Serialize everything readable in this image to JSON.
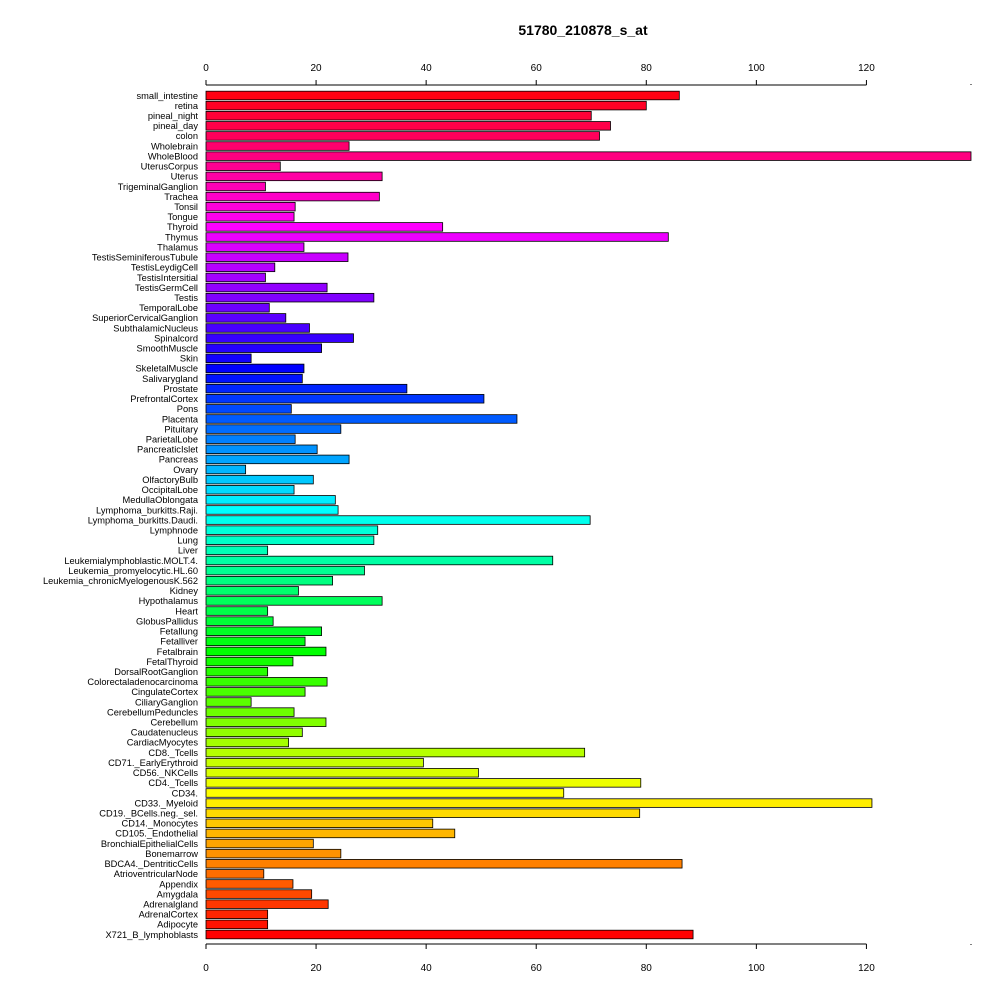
{
  "chart_data": {
    "type": "bar",
    "orientation": "horizontal",
    "title": "51780_210878_s_at",
    "xlabel": "",
    "ylabel": "",
    "xlim": [
      0,
      139
    ],
    "xticks": [
      "0",
      "20",
      "40",
      "60",
      "80",
      "100",
      "120"
    ],
    "grid": false,
    "color_scheme": "rainbow",
    "categories": [
      "small_intestine",
      "retina",
      "pineal_night",
      "pineal_day",
      "colon",
      "Wholebrain",
      "WholeBlood",
      "UterusCorpus",
      "Uterus",
      "TrigeminalGanglion",
      "Trachea",
      "Tonsil",
      "Tongue",
      "Thyroid",
      "Thymus",
      "Thalamus",
      "TestisSeminiferousTubule",
      "TestisLeydigCell",
      "TestisIntersitial",
      "TestisGermCell",
      "Testis",
      "TemporalLobe",
      "SuperiorCervicalGanglion",
      "SubthalamicNucleus",
      "Spinalcord",
      "SmoothMuscle",
      "Skin",
      "SkeletalMuscle",
      "Salivarygland",
      "Prostate",
      "PrefrontalCortex",
      "Pons",
      "Placenta",
      "Pituitary",
      "ParietalLobe",
      "PancreaticIslet",
      "Pancreas",
      "Ovary",
      "OlfactoryBulb",
      "OccipitalLobe",
      "MedullaOblongata",
      "Lymphoma_burkitts.Raji.",
      "Lymphoma_burkitts.Daudi.",
      "Lymphnode",
      "Lung",
      "Liver",
      "Leukemialymphoblastic.MOLT.4.",
      "Leukemia_promyelocytic.HL.60",
      "Leukemia_chronicMyelogenousK.562",
      "Kidney",
      "Hypothalamus",
      "Heart",
      "GlobusPallidus",
      "Fetallung",
      "Fetalliver",
      "Fetalbrain",
      "FetalThyroid",
      "DorsalRootGanglion",
      "Colorectaladenocarcinoma",
      "CingulateCortex",
      "CiliaryGanglion",
      "CerebellumPeduncles",
      "Cerebellum",
      "Caudatenucleus",
      "CardiacMyocytes",
      "CD8._Tcells",
      "CD71._EarlyErythroid",
      "CD56._NKCells",
      "CD4._Tcells",
      "CD34.",
      "CD33._Myeloid",
      "CD19._BCells.neg._sel.",
      "CD14._Monocytes",
      "CD105._Endothelial",
      "BronchialEpithelialCells",
      "Bonemarrow",
      "BDCA4._DentriticCells",
      "AtrioventricularNode",
      "Appendix",
      "Amygdala",
      "Adrenalgland",
      "AdrenalCortex",
      "Adipocyte",
      "X721_B_lymphoblasts"
    ],
    "values": [
      86,
      80,
      70,
      73.5,
      71.5,
      26,
      139,
      13.5,
      32,
      10.8,
      31.5,
      16.2,
      16,
      43,
      84,
      17.8,
      25.8,
      12.5,
      10.8,
      22,
      30.5,
      11.5,
      14.5,
      18.8,
      26.8,
      21,
      8.2,
      17.8,
      17.5,
      36.5,
      50.5,
      15.5,
      56.5,
      24.5,
      16.2,
      20.2,
      26,
      7.2,
      19.5,
      16,
      23.5,
      24,
      69.8,
      31.2,
      30.5,
      11.2,
      63,
      28.8,
      23,
      16.8,
      32,
      11.2,
      12.2,
      21,
      18,
      21.8,
      15.8,
      11.2,
      22,
      18,
      8.2,
      16,
      21.8,
      17.5,
      15,
      68.8,
      39.5,
      49.5,
      79,
      65,
      121,
      78.8,
      41.2,
      45.2,
      19.5,
      24.5,
      86.5,
      10.5,
      15.8,
      19.2,
      22.2,
      11.2,
      11.2,
      88.5
    ]
  }
}
